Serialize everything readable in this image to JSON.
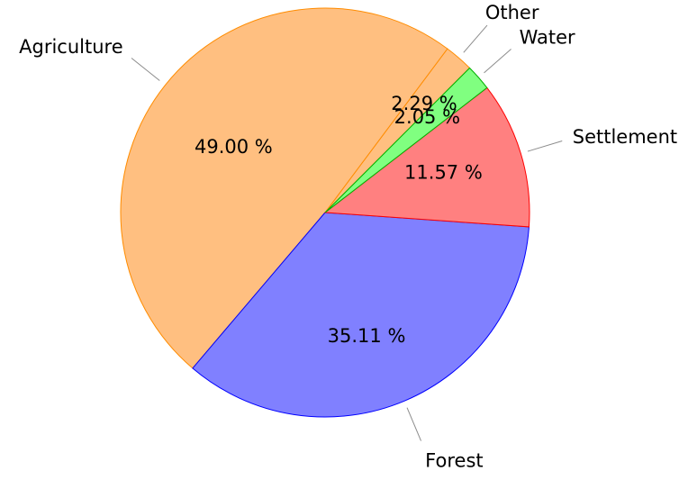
{
  "chart_data": {
    "type": "pie",
    "title": "",
    "start_angle_deg": 45,
    "direction": "counterclockwise",
    "slices": [
      {
        "label": "Other",
        "value": 2.29,
        "value_label": "2.29 %",
        "fill": "#ffbf80",
        "stroke": "#ff8c00"
      },
      {
        "label": "Agriculture",
        "value": 49.0,
        "value_label": "49.00 %",
        "fill": "#ffbf80",
        "stroke": "#ff8c00"
      },
      {
        "label": "Forest",
        "value": 35.11,
        "value_label": "35.11 %",
        "fill": "#8080ff",
        "stroke": "#0000ff"
      },
      {
        "label": "Settlement",
        "value": 11.57,
        "value_label": "11.57 %",
        "fill": "#ff8080",
        "stroke": "#ff0000"
      },
      {
        "label": "Water",
        "value": 2.05,
        "value_label": "2.05 %",
        "fill": "#80ff80",
        "stroke": "#00b000"
      }
    ]
  }
}
